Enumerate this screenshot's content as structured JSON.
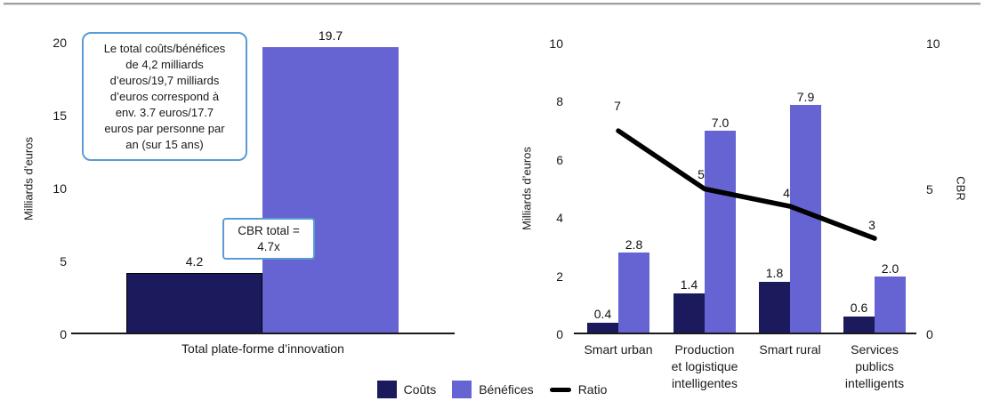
{
  "colors": {
    "couts": "#1b1a5c",
    "benefices": "#6664d2",
    "ratio": "#000000",
    "annotation_border": "#5B9BD5",
    "axis_line": "#1a1a1a"
  },
  "legend": {
    "items": [
      {
        "key": "couts",
        "label": "Coûts",
        "marker": "square"
      },
      {
        "key": "benefices",
        "label": "Bénéfices",
        "marker": "square"
      },
      {
        "key": "ratio",
        "label": "Ratio",
        "marker": "line"
      }
    ]
  },
  "chart_data": [
    {
      "id": "total-platform",
      "type": "bar",
      "ylabel": "Milliards d’euros",
      "ylim": [
        0,
        20
      ],
      "yticks": [
        0,
        5,
        10,
        15,
        20
      ],
      "grid": false,
      "categories": [
        "Total plate-forme d’innovation"
      ],
      "series": [
        {
          "name": "Coûts",
          "values": [
            4.2
          ],
          "labels": [
            "4.2"
          ]
        },
        {
          "name": "Bénéfices",
          "values": [
            19.7
          ],
          "labels": [
            "19.7"
          ]
        }
      ],
      "annotations": [
        {
          "text": "Le total coûts/bénéfices\nde 4,2 milliards\nd’euros/19,7 milliards\nd’euros correspond à\nenv. 3.7 euros/17.7\neuros par personne par\nan (sur 15 ans)"
        },
        {
          "text": "CBR total =\n4.7x"
        }
      ]
    },
    {
      "id": "by-domain",
      "type": "bar+line",
      "ylabel": "Milliards d’euros",
      "ylabel_right": "CBR",
      "ylim": [
        0,
        10
      ],
      "yticks": [
        0,
        2,
        4,
        6,
        8,
        10
      ],
      "ylim_right": [
        0,
        10
      ],
      "yticks_right": [
        0,
        5,
        10
      ],
      "grid": false,
      "categories": [
        "Smart urban",
        "Production et logistique intelligentes",
        "Smart rural",
        "Services publics intelligents"
      ],
      "category_display_lines": [
        [
          "Smart urban"
        ],
        [
          "Production",
          "et logistique",
          "intelligentes"
        ],
        [
          "Smart rural"
        ],
        [
          "Services",
          "publics",
          "intelligents"
        ]
      ],
      "series": [
        {
          "name": "Coûts",
          "values": [
            0.4,
            1.4,
            1.8,
            0.6
          ],
          "labels": [
            "0.4",
            "1.4",
            "1.8",
            "0.6"
          ]
        },
        {
          "name": "Bénéfices",
          "values": [
            2.8,
            7.0,
            7.9,
            2.0
          ],
          "labels": [
            "2.8",
            "7.0",
            "7.9",
            "2.0"
          ]
        }
      ],
      "line_series": {
        "name": "Ratio",
        "values": [
          7,
          5,
          4.4,
          3.3
        ],
        "labels": [
          "7",
          "5",
          "4",
          "3"
        ],
        "axis": "right"
      }
    }
  ]
}
